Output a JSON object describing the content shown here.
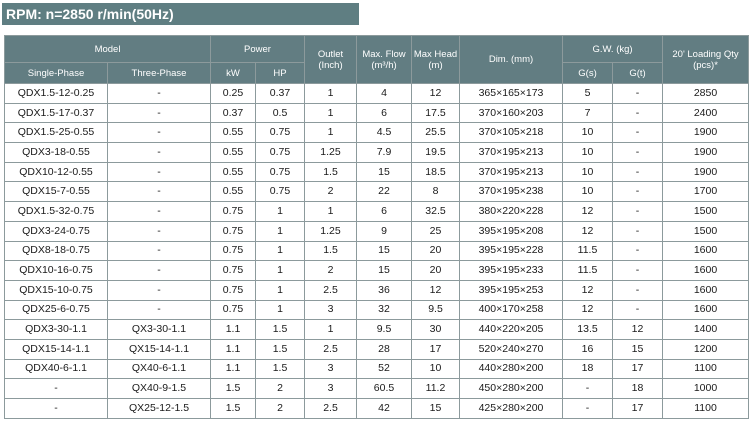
{
  "banner": "RPM: n=2850 r/min(50Hz)",
  "header": {
    "model": "Model",
    "power": "Power",
    "outlet": "Outlet (Inch)",
    "max_flow": "Max. Flow (m³/h)",
    "max_head": "Max Head (m)",
    "dim": "Dim. (mm)",
    "gw": "G.W. (kg)",
    "loading": "20' Loading Qty (pcs)*",
    "single_phase": "Single-Phase",
    "three_phase": "Three-Phase",
    "kw": "kW",
    "hp": "HP",
    "gs": "G(s)",
    "gt": "G(t)"
  },
  "rows": [
    [
      "QDX1.5-12-0.25",
      "-",
      "0.25",
      "0.37",
      "1",
      "4",
      "12",
      "365×165×173",
      "5",
      "-",
      "2850"
    ],
    [
      "QDX1.5-17-0.37",
      "-",
      "0.37",
      "0.5",
      "1",
      "6",
      "17.5",
      "370×160×203",
      "7",
      "-",
      "2400"
    ],
    [
      "QDX1.5-25-0.55",
      "-",
      "0.55",
      "0.75",
      "1",
      "4.5",
      "25.5",
      "370×105×218",
      "10",
      "-",
      "1900"
    ],
    [
      "QDX3-18-0.55",
      "-",
      "0.55",
      "0.75",
      "1.25",
      "7.9",
      "19.5",
      "370×195×213",
      "10",
      "-",
      "1900"
    ],
    [
      "QDX10-12-0.55",
      "-",
      "0.55",
      "0.75",
      "1.5",
      "15",
      "18.5",
      "370×195×213",
      "10",
      "-",
      "1900"
    ],
    [
      "QDX15-7-0.55",
      "-",
      "0.55",
      "0.75",
      "2",
      "22",
      "8",
      "370×195×238",
      "10",
      "-",
      "1700"
    ],
    [
      "QDX1.5-32-0.75",
      "-",
      "0.75",
      "1",
      "1",
      "6",
      "32.5",
      "380×220×228",
      "12",
      "-",
      "1500"
    ],
    [
      "QDX3-24-0.75",
      "-",
      "0.75",
      "1",
      "1.25",
      "9",
      "25",
      "395×195×208",
      "12",
      "-",
      "1500"
    ],
    [
      "QDX8-18-0.75",
      "-",
      "0.75",
      "1",
      "1.5",
      "15",
      "20",
      "395×195×228",
      "11.5",
      "-",
      "1600"
    ],
    [
      "QDX10-16-0.75",
      "-",
      "0.75",
      "1",
      "2",
      "15",
      "20",
      "395×195×233",
      "11.5",
      "-",
      "1600"
    ],
    [
      "QDX15-10-0.75",
      "-",
      "0.75",
      "1",
      "2.5",
      "36",
      "12",
      "395×195×253",
      "12",
      "-",
      "1600"
    ],
    [
      "QDX25-6-0.75",
      "-",
      "0.75",
      "1",
      "3",
      "32",
      "9.5",
      "400×170×258",
      "12",
      "-",
      "1600"
    ],
    [
      "QDX3-30-1.1",
      "QX3-30-1.1",
      "1.1",
      "1.5",
      "1",
      "9.5",
      "30",
      "440×220×205",
      "13.5",
      "12",
      "1400"
    ],
    [
      "QDX15-14-1.1",
      "QX15-14-1.1",
      "1.1",
      "1.5",
      "2.5",
      "28",
      "17",
      "520×240×270",
      "16",
      "15",
      "1200"
    ],
    [
      "QDX40-6-1.1",
      "QX40-6-1.1",
      "1.1",
      "1.5",
      "3",
      "52",
      "10",
      "440×280×200",
      "18",
      "17",
      "1100"
    ],
    [
      "-",
      "QX40-9-1.5",
      "1.5",
      "2",
      "3",
      "60.5",
      "11.2",
      "450×280×200",
      "-",
      "18",
      "1000"
    ],
    [
      "-",
      "QX25-12-1.5",
      "1.5",
      "2",
      "2.5",
      "42",
      "15",
      "425×280×200",
      "-",
      "17",
      "1100"
    ]
  ]
}
